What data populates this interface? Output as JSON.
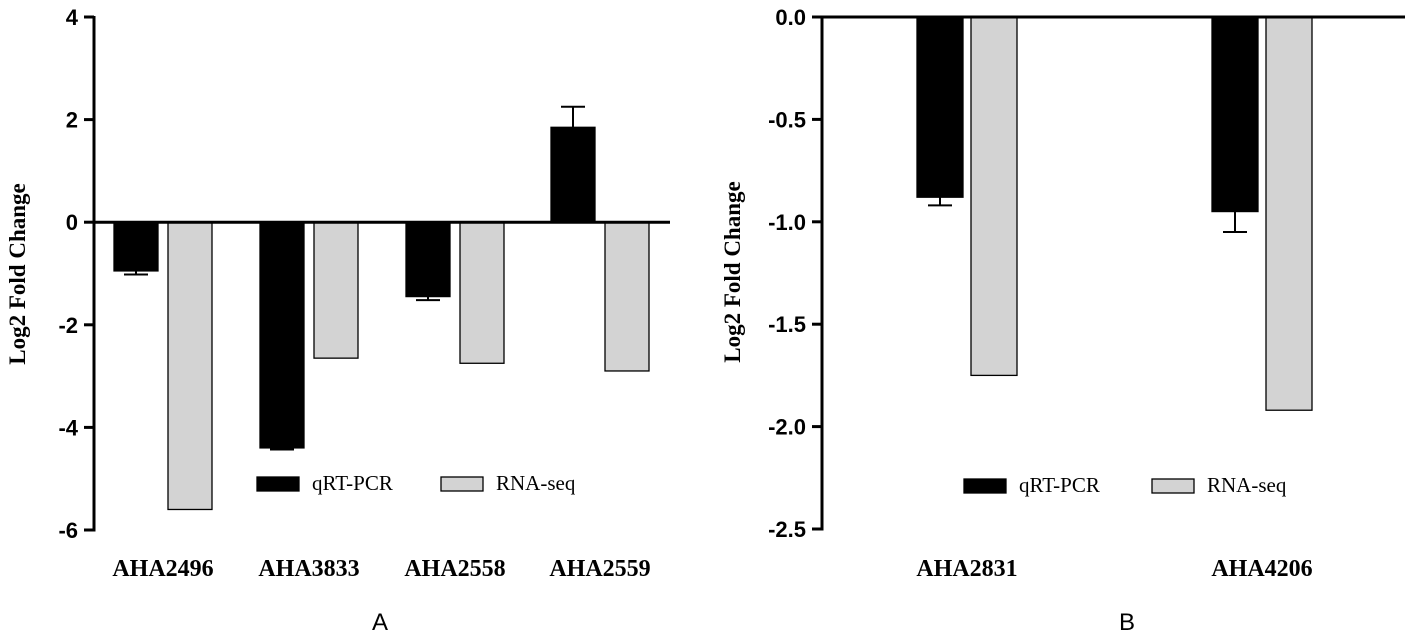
{
  "chart_data": [
    {
      "type": "bar",
      "panel": "A",
      "categories": [
        "AHA2496",
        "AHA3833",
        "AHA2558",
        "AHA2559"
      ],
      "series": [
        {
          "name": "qRT-PCR",
          "color": "#000000",
          "values": [
            -0.95,
            -4.4,
            -1.45,
            1.85
          ],
          "errors": [
            0.07,
            0.03,
            0.07,
            0.4
          ]
        },
        {
          "name": "RNA-seq",
          "color": "#d3d3d3",
          "values": [
            -5.6,
            -2.65,
            -2.75,
            -2.9
          ]
        }
      ],
      "ylabel": "Log2 Fold Change",
      "xlabel": "",
      "ylim": [
        -6,
        4
      ],
      "yticks": [
        4,
        2,
        0,
        -2,
        -4,
        -6
      ],
      "ytick_labels": [
        "4",
        "2",
        "0",
        "-2",
        "-4",
        "-6"
      ],
      "legend_position": "bottom-right"
    },
    {
      "type": "bar",
      "panel": "B",
      "categories": [
        "AHA2831",
        "AHA4206"
      ],
      "series": [
        {
          "name": "qRT-PCR",
          "color": "#000000",
          "values": [
            -0.88,
            -0.95
          ],
          "errors": [
            0.04,
            0.1
          ]
        },
        {
          "name": "RNA-seq",
          "color": "#d3d3d3",
          "values": [
            -1.75,
            -1.92
          ]
        }
      ],
      "ylabel": "Log2 Fold Change",
      "xlabel": "",
      "ylim": [
        -2.5,
        0
      ],
      "yticks": [
        0,
        -0.5,
        -1,
        -1.5,
        -2,
        -2.5
      ],
      "ytick_labels": [
        "0.0",
        "-0.5",
        "-1.0",
        "-1.5",
        "-2.0",
        "-2.5"
      ],
      "legend_position": "bottom-right"
    }
  ]
}
